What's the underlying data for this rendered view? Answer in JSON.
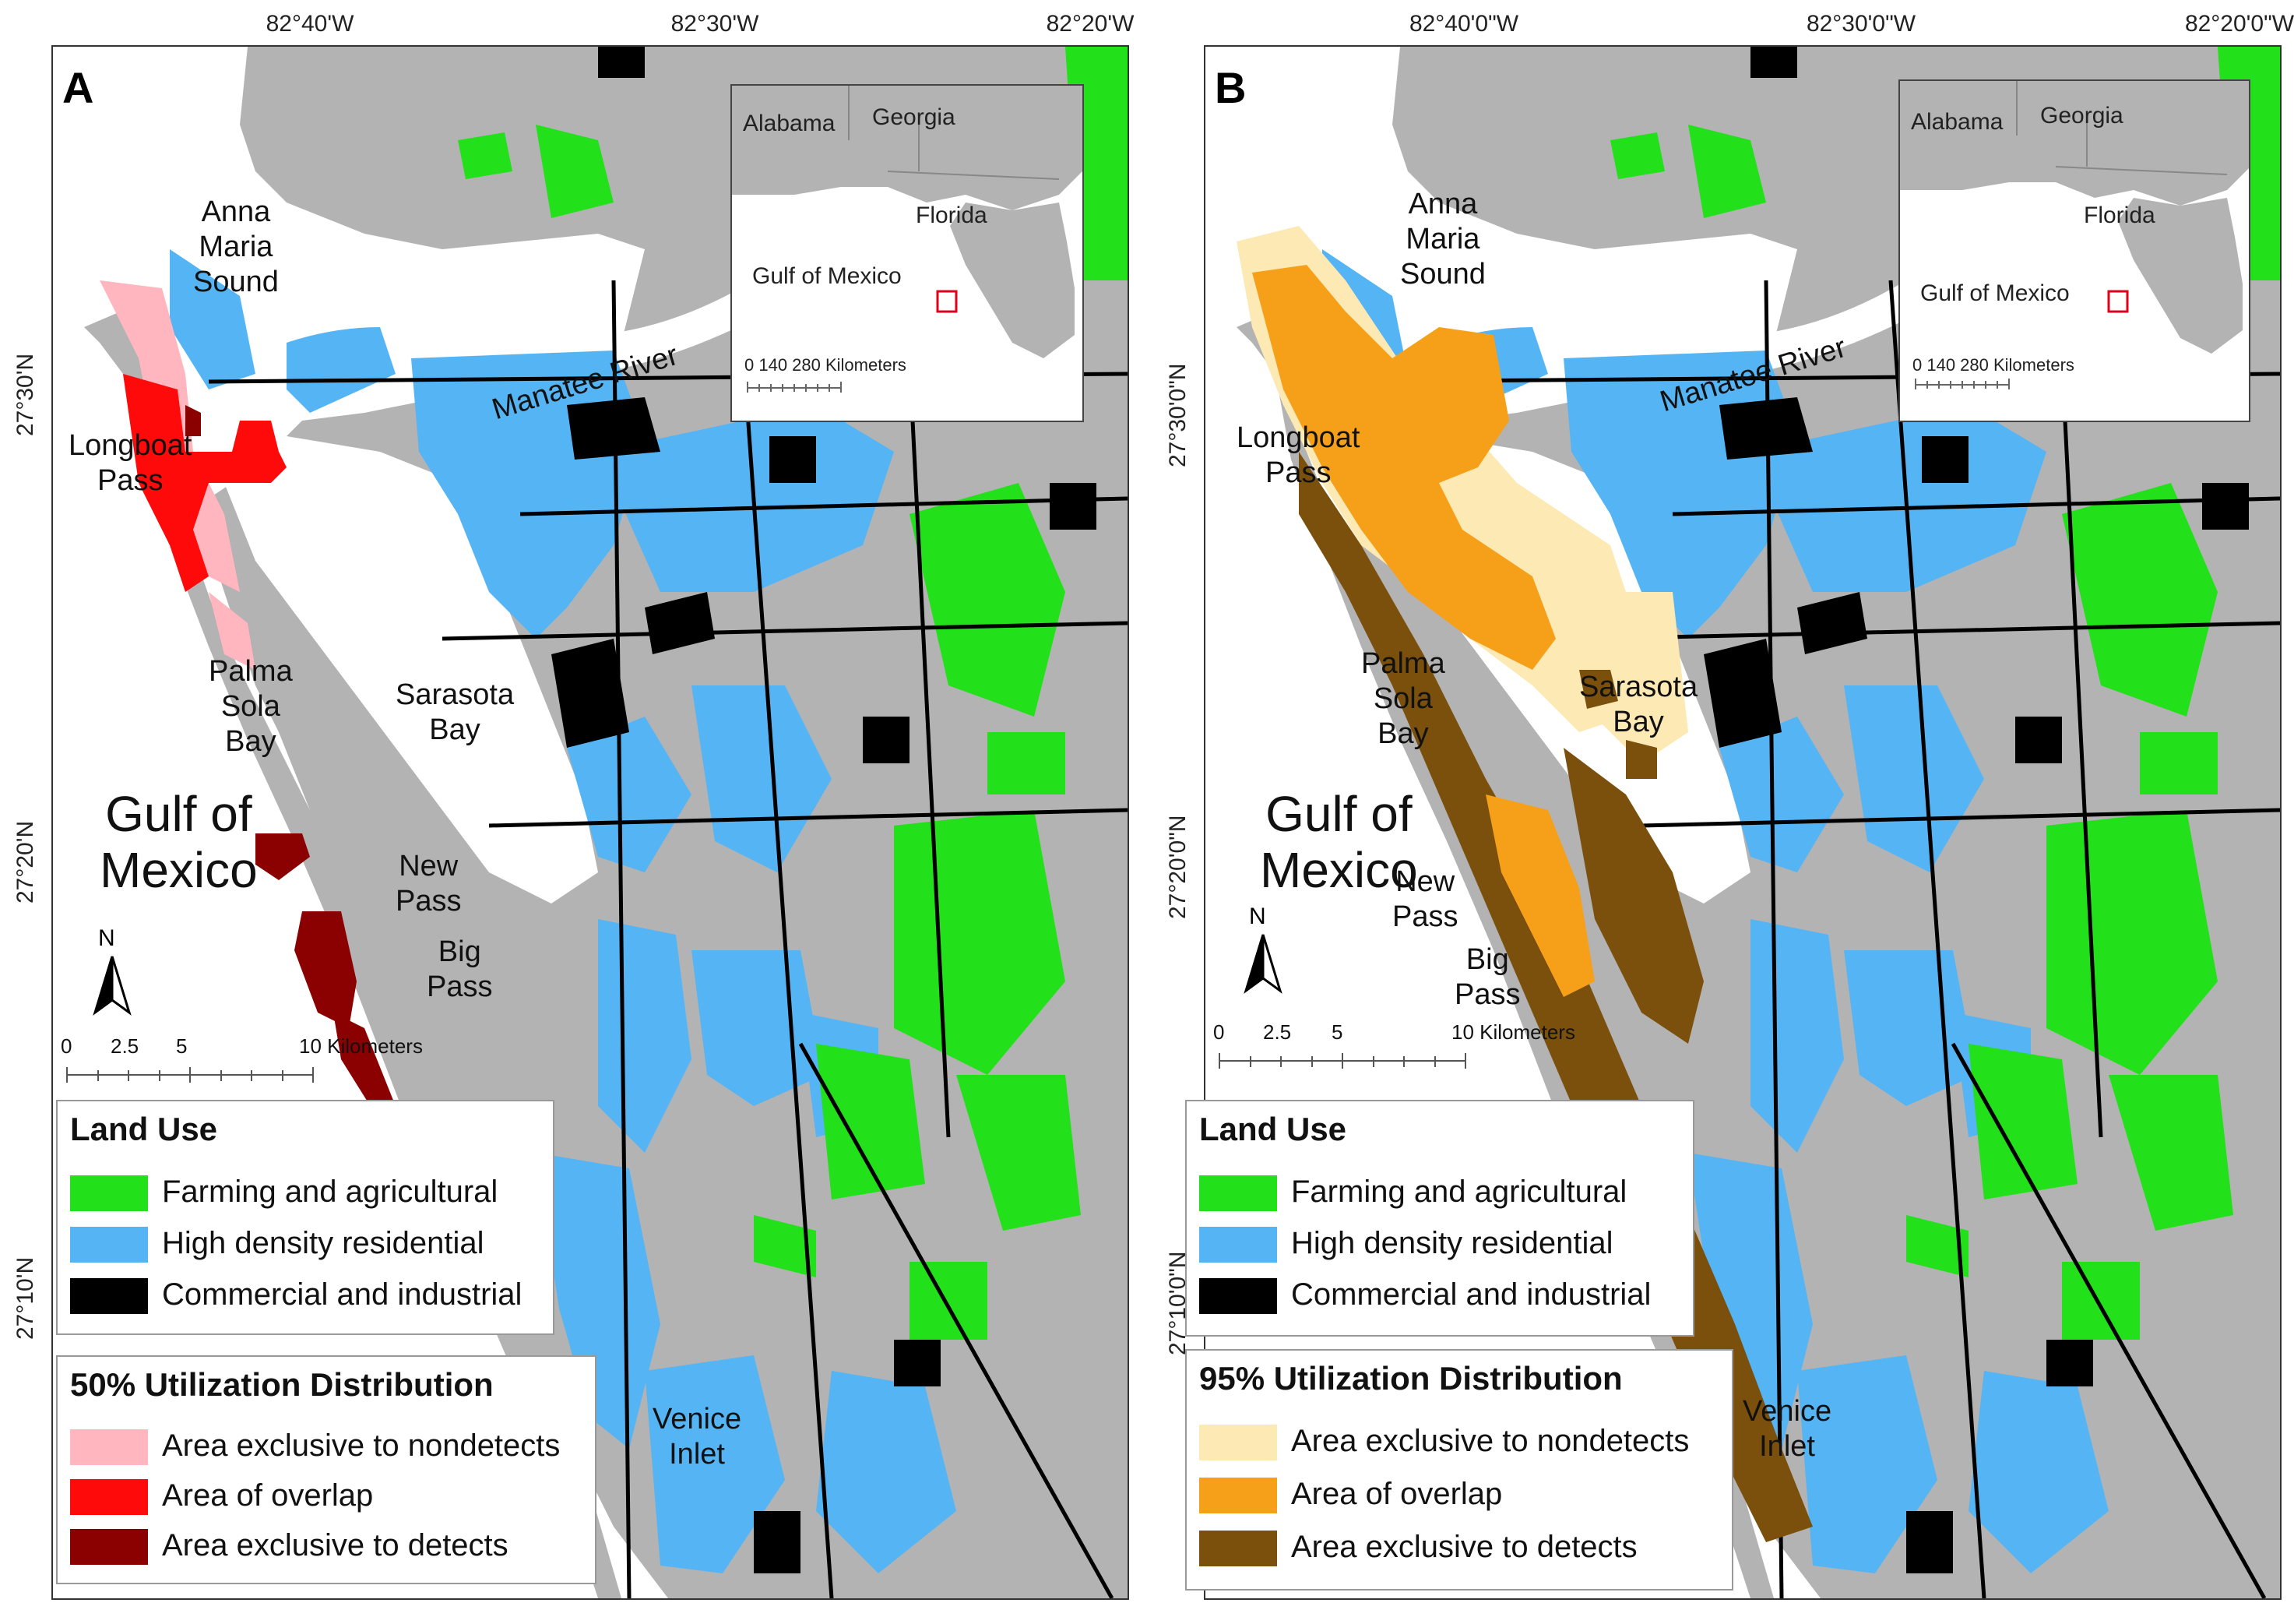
{
  "colors": {
    "land": "#b3b3b3",
    "water": "#ffffff",
    "farming": "#22e01a",
    "residential": "#54b4f4",
    "commercial": "#000000",
    "nondetect_50": "#ffb6be",
    "overlap_50": "#ff0a0a",
    "detect_50": "#8b0000",
    "nondetect_95": "#fde9b4",
    "overlap_95": "#f6a01a",
    "detect_95": "#7b4f0c",
    "inset_box": "#e0001a"
  },
  "panels": [
    {
      "letter": "A",
      "lon_ticks": [
        "82°40'W",
        "82°30'W",
        "82°20'W"
      ],
      "lat_ticks": [
        "27°30'N",
        "27°20'N",
        "27°10'N"
      ],
      "labels": {
        "anna_maria": "Anna\nMaria\nSound",
        "longboat": "Longboat\nPass",
        "palma_sola": "Palma\nSola\nBay",
        "sarasota": "Sarasota\nBay",
        "gulf": "Gulf of\nMexico",
        "new_pass": "New\nPass",
        "big_pass": "Big\nPass",
        "venice": "Venice\nInlet",
        "manatee": "Manatee River"
      },
      "inset": {
        "alabama": "Alabama",
        "georgia": "Georgia",
        "florida": "Florida",
        "gulf": "Gulf of Mexico",
        "scale": "0     140   280 Kilometers"
      },
      "north": "N",
      "scale": {
        "t0": "0",
        "t1": "2.5",
        "t2": "5",
        "t3": "10 Kilometers"
      },
      "land_use_legend": {
        "title": "Land Use",
        "items": [
          "Farming and agricultural",
          "High density residential",
          "Commercial and industrial"
        ]
      },
      "ud_legend": {
        "title": "50% Utilization Distribution",
        "items": [
          "Area exclusive to nondetects",
          "Area of overlap",
          "Area exclusive to detects"
        ]
      }
    },
    {
      "letter": "B",
      "lon_ticks": [
        "82°40'0\"W",
        "82°30'0\"W",
        "82°20'0\"W"
      ],
      "lat_ticks": [
        "27°30'0\"N",
        "27°20'0\"N",
        "27°10'0\"N"
      ],
      "labels": {
        "anna_maria": "Anna\nMaria\nSound",
        "longboat": "Longboat\nPass",
        "palma_sola": "Palma\nSola\nBay",
        "sarasota": "Sarasota\nBay",
        "gulf": "Gulf of\nMexico",
        "new_pass": "New\nPass",
        "big_pass": "Big\nPass",
        "venice": "Venice\nInlet",
        "manatee": "Manatee River"
      },
      "inset": {
        "alabama": "Alabama",
        "georgia": "Georgia",
        "florida": "Florida",
        "gulf": "Gulf of Mexico",
        "scale": "0   140  280 Kilometers"
      },
      "north": "N",
      "scale": {
        "t0": "0",
        "t1": "2.5",
        "t2": "5",
        "t3": "10 Kilometers"
      },
      "land_use_legend": {
        "title": "Land Use",
        "items": [
          "Farming and agricultural",
          "High density residential",
          "Commercial and industrial"
        ]
      },
      "ud_legend": {
        "title": "95% Utilization Distribution",
        "items": [
          "Area exclusive to nondetects",
          "Area of overlap",
          "Area exclusive to detects"
        ]
      }
    }
  ]
}
